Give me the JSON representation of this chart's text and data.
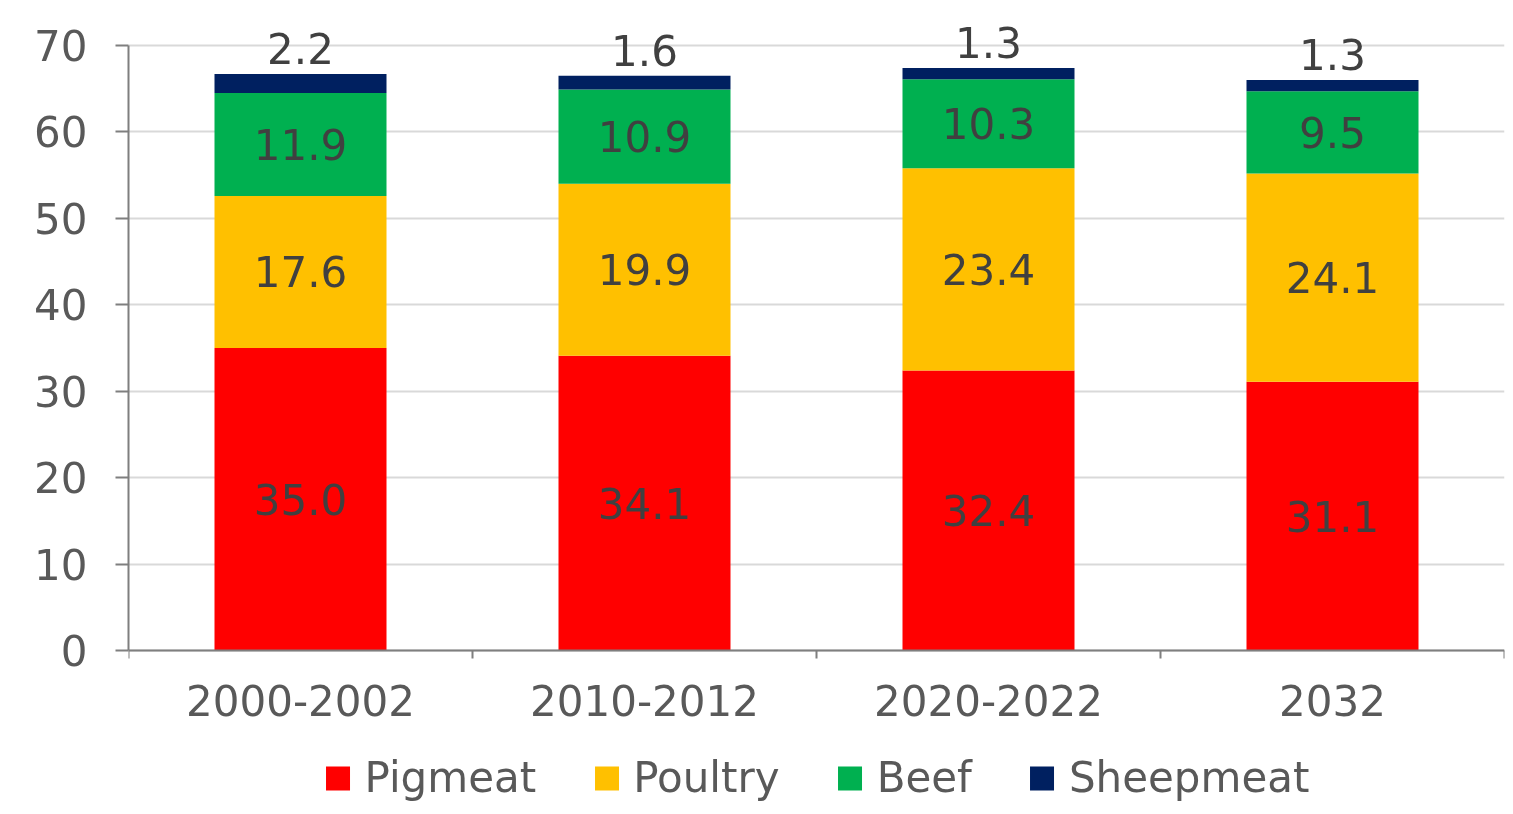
{
  "chart_data": {
    "type": "bar",
    "stacked": true,
    "categories": [
      "2000-2002",
      "2010-2012",
      "2020-2022",
      "2032"
    ],
    "series": [
      {
        "name": "Pigmeat",
        "color": "#ff0000",
        "values": [
          35.0,
          34.1,
          32.4,
          31.1
        ],
        "value_labels": [
          "35.0",
          "34.1",
          "32.4",
          "31.1"
        ]
      },
      {
        "name": "Poultry",
        "color": "#ffc000",
        "values": [
          17.6,
          19.9,
          23.4,
          24.1
        ],
        "value_labels": [
          "17.6",
          "19.9",
          "23.4",
          "24.1"
        ]
      },
      {
        "name": "Beef",
        "color": "#00b050",
        "values": [
          11.9,
          10.9,
          10.3,
          9.5
        ],
        "value_labels": [
          "11.9",
          "10.9",
          "10.3",
          "9.5"
        ]
      },
      {
        "name": "Sheepmeat",
        "color": "#002060",
        "values": [
          2.2,
          1.6,
          1.3,
          1.3
        ],
        "value_labels": [
          "2.2",
          "1.6",
          "1.3",
          "1.3"
        ]
      }
    ],
    "ylim": [
      0,
      70
    ],
    "yticks": [
      0,
      10,
      20,
      30,
      40,
      50,
      60,
      70
    ],
    "grid": "y",
    "legend": "bottom"
  }
}
